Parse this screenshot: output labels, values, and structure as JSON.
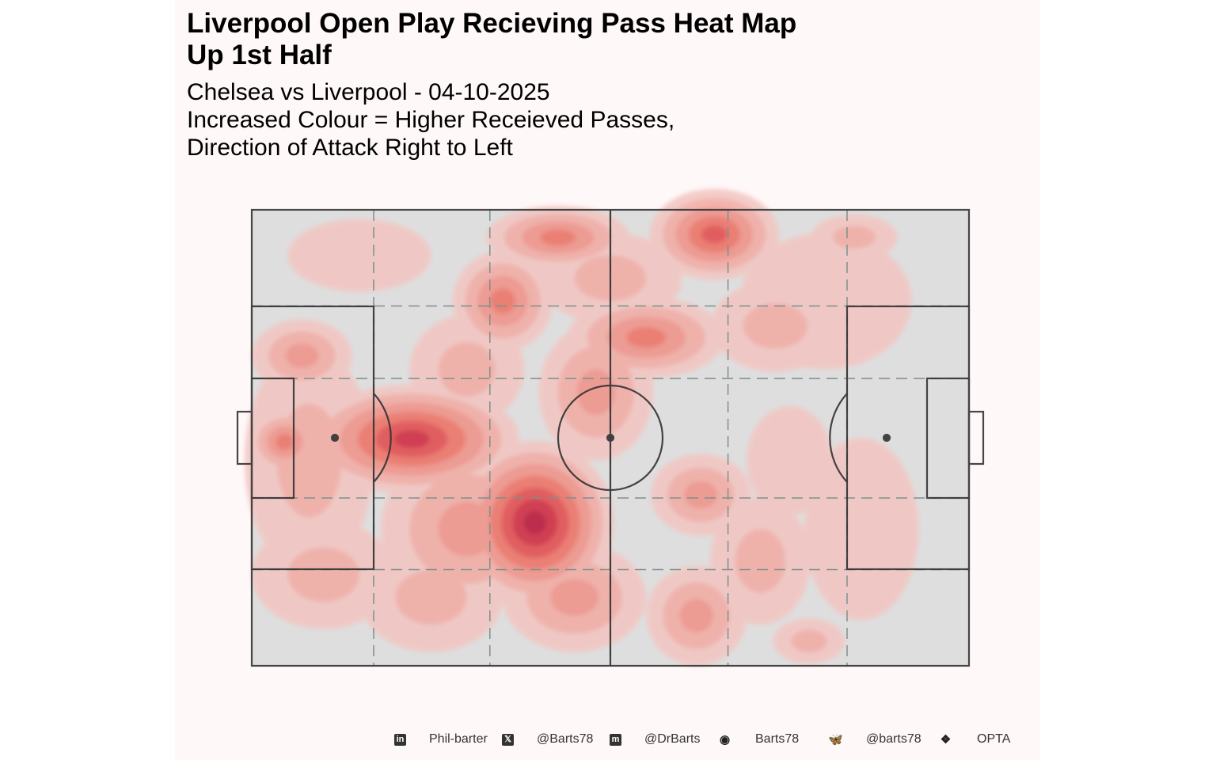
{
  "title_lines": [
    "Liverpool Open Play Recieving Pass Heat Map",
    "Up 1st Half"
  ],
  "subtitle_lines": [
    "Chelsea vs Liverpool - 04-10-2025",
    "Increased Colour = Higher Receieved Passes,",
    "Direction of Attack Right to Left"
  ],
  "chart_data": {
    "type": "heatmap",
    "title": "Liverpool Open Play Recieving Pass Heat Map Up 1st Half",
    "subtitle": "Chelsea vs Liverpool - 04-10-2025. Increased Colour = Higher Receieved Passes, Direction of Attack Right to Left",
    "xlim": [
      0,
      100
    ],
    "ylim": [
      0,
      100
    ],
    "grid_lines_x": [
      17,
      33.2,
      50,
      66.4,
      83
    ],
    "grid_lines_y": [
      21.1,
      37,
      63.2,
      78.9
    ],
    "level_colors": [
      "#f2c6c2",
      "#f2aca5",
      "#f09389",
      "#ec7266",
      "#e14d4f",
      "#cf2b3f",
      "#b8163a"
    ],
    "density_peaks": [
      {
        "x": 39.5,
        "y": 68.6,
        "sx": 11,
        "sy": 18,
        "level": 7
      },
      {
        "x": 22.3,
        "y": 50.3,
        "sx": 15,
        "sy": 12,
        "level": 6
      },
      {
        "x": 4.6,
        "y": 50.9,
        "sx": 5,
        "sy": 7,
        "level": 4
      },
      {
        "x": 8,
        "y": 55,
        "sx": 9,
        "sy": 25,
        "level": 2
      },
      {
        "x": 42.7,
        "y": 6.1,
        "sx": 10,
        "sy": 7,
        "level": 4
      },
      {
        "x": 64.5,
        "y": 5.4,
        "sx": 9,
        "sy": 10,
        "level": 5
      },
      {
        "x": 35,
        "y": 20,
        "sx": 7,
        "sy": 11,
        "level": 4
      },
      {
        "x": 55,
        "y": 28,
        "sx": 11,
        "sy": 9,
        "level": 4
      },
      {
        "x": 62.6,
        "y": 62.5,
        "sx": 7,
        "sy": 9,
        "level": 3
      },
      {
        "x": 62,
        "y": 89,
        "sx": 7,
        "sy": 11,
        "level": 3
      },
      {
        "x": 77.7,
        "y": 94.6,
        "sx": 5,
        "sy": 5,
        "level": 2
      },
      {
        "x": 7,
        "y": 32,
        "sx": 7,
        "sy": 8,
        "level": 3
      },
      {
        "x": 84,
        "y": 6,
        "sx": 6,
        "sy": 5,
        "level": 2
      },
      {
        "x": 70.9,
        "y": 77,
        "sx": 7,
        "sy": 14,
        "level": 2
      },
      {
        "x": 73,
        "y": 25.5,
        "sx": 9,
        "sy": 10,
        "level": 2
      },
      {
        "x": 30,
        "y": 70,
        "sx": 12,
        "sy": 18,
        "level": 3
      },
      {
        "x": 25,
        "y": 85,
        "sx": 10,
        "sy": 12,
        "level": 2
      },
      {
        "x": 45,
        "y": 85,
        "sx": 10,
        "sy": 12,
        "level": 3
      },
      {
        "x": 48,
        "y": 40,
        "sx": 8,
        "sy": 15,
        "level": 3
      },
      {
        "x": 30,
        "y": 35,
        "sx": 8,
        "sy": 12,
        "level": 2
      },
      {
        "x": 85,
        "y": 70,
        "sx": 8,
        "sy": 20,
        "level": 1
      },
      {
        "x": 80,
        "y": 20,
        "sx": 12,
        "sy": 15,
        "level": 1
      },
      {
        "x": 50,
        "y": 15,
        "sx": 10,
        "sy": 10,
        "level": 2
      },
      {
        "x": 75,
        "y": 55,
        "sx": 6,
        "sy": 12,
        "level": 1
      },
      {
        "x": 10,
        "y": 80,
        "sx": 10,
        "sy": 12,
        "level": 2
      },
      {
        "x": 15,
        "y": 10,
        "sx": 10,
        "sy": 8,
        "level": 1
      }
    ]
  },
  "footer": [
    {
      "icon": "linkedin-icon",
      "text": "Phil-barter"
    },
    {
      "icon": "x-twitter-icon",
      "text": "@Barts78"
    },
    {
      "icon": "mastodon-icon",
      "text": "@DrBarts"
    },
    {
      "icon": "github-icon",
      "text": "Barts78"
    },
    {
      "icon": "bluesky-icon",
      "text": "@barts78"
    },
    {
      "icon": "dropbox-icon",
      "text": "OPTA"
    }
  ]
}
